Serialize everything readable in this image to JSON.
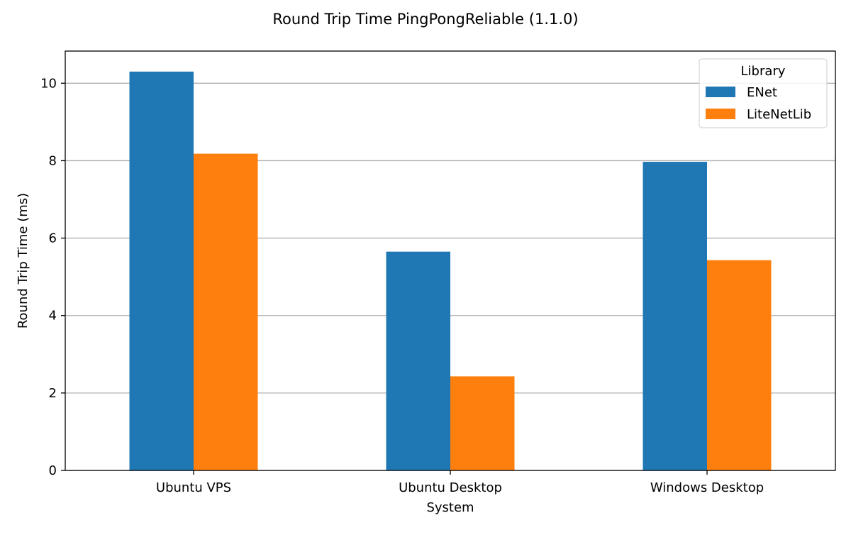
{
  "chart_data": {
    "type": "bar",
    "title": "Round Trip Time PingPongReliable (1.1.0)",
    "xlabel": "System",
    "ylabel": "Round Trip Time (ms)",
    "categories": [
      "Ubuntu VPS",
      "Ubuntu Desktop",
      "Windows Desktop"
    ],
    "series": [
      {
        "name": "ENet",
        "values": [
          10.3,
          5.65,
          7.97
        ],
        "color": "#1f77b4"
      },
      {
        "name": "LiteNetLib",
        "values": [
          8.18,
          2.43,
          5.43
        ],
        "color": "#ff7f0e"
      }
    ],
    "ylim": [
      0,
      10.83
    ],
    "yticks": [
      0,
      2,
      4,
      6,
      8,
      10
    ],
    "grid": "y",
    "legend": {
      "title": "Library",
      "position": "top-right"
    }
  }
}
